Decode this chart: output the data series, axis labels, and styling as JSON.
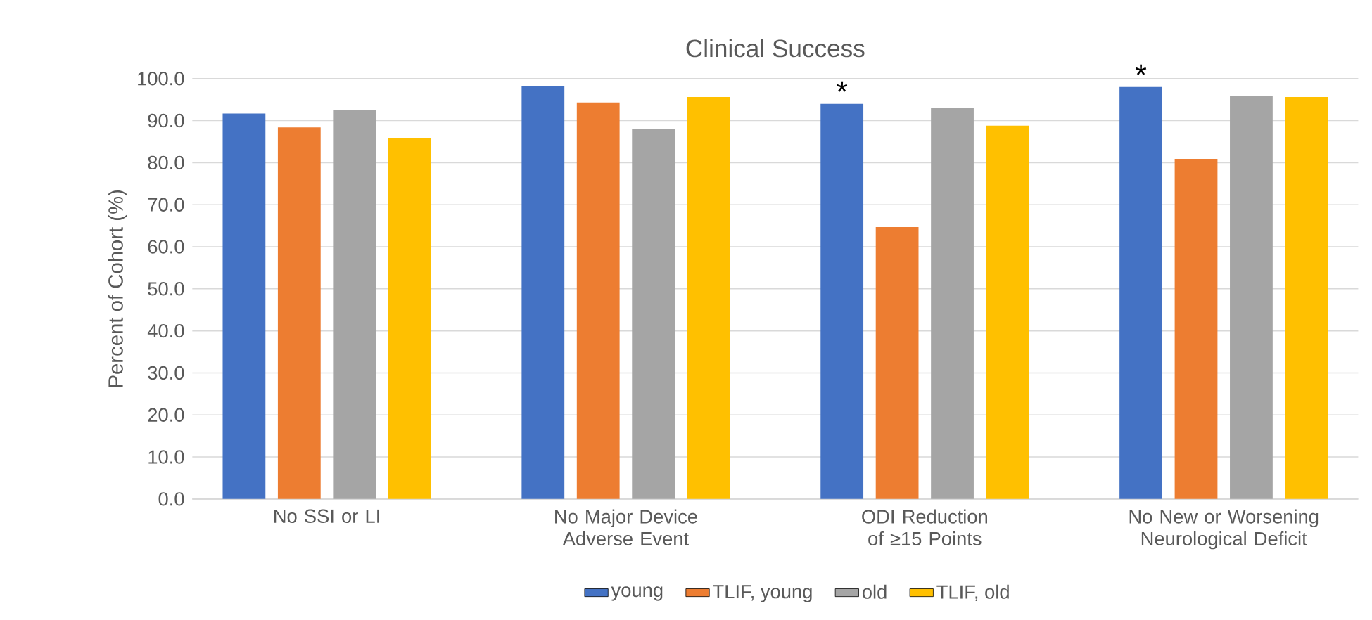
{
  "chart_data": {
    "type": "bar",
    "title": "Clinical Success",
    "ylabel": "Percent of Cohort (%)",
    "categories": [
      "No SSI or LI",
      "No Major Device Adverse Event",
      "ODI Reduction of ≥15 Points",
      "No New or Worsening Neurological Deficit"
    ],
    "series": [
      {
        "name": "young",
        "color": "#4472c4",
        "values": [
          91.7,
          98.1,
          94.0,
          98.0
        ]
      },
      {
        "name": "TLIF, young",
        "color": "#ed7d31",
        "values": [
          88.4,
          94.3,
          64.7,
          80.9
        ]
      },
      {
        "name": "old",
        "color": "#a5a5a5",
        "values": [
          92.6,
          87.9,
          93.0,
          95.8
        ]
      },
      {
        "name": "TLIF, old",
        "color": "#ffc000",
        "values": [
          85.8,
          95.6,
          88.8,
          95.6
        ]
      }
    ],
    "ylim": [
      0,
      100
    ],
    "yticks": [
      {
        "value": 0,
        "label": "0.0"
      },
      {
        "value": 10,
        "label": "10.0"
      },
      {
        "value": 20,
        "label": "20.0"
      },
      {
        "value": 30,
        "label": "30.0"
      },
      {
        "value": 40,
        "label": "40.0"
      },
      {
        "value": 50,
        "label": "50.0"
      },
      {
        "value": 60,
        "label": "60.0"
      },
      {
        "value": 70,
        "label": "70.0"
      },
      {
        "value": 80,
        "label": "80.0"
      },
      {
        "value": 90,
        "label": "90.0"
      },
      {
        "value": 100,
        "label": "100.0"
      }
    ],
    "annotations": [
      "*",
      "*"
    ],
    "grid": "y",
    "legend": "bottom"
  }
}
